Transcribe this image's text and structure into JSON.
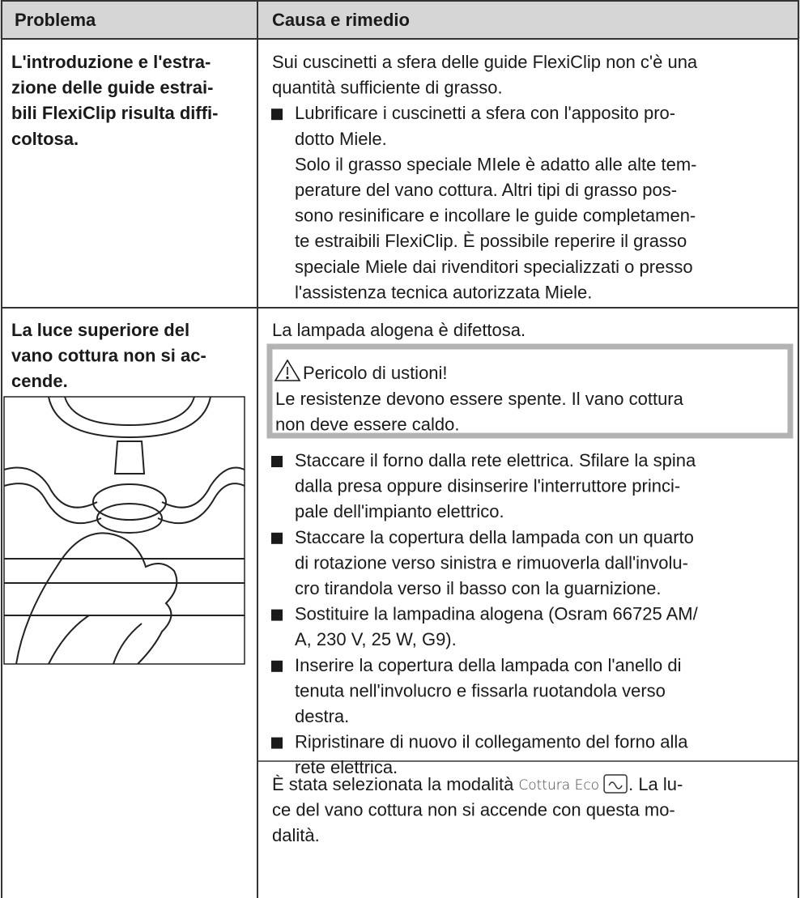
{
  "header": {
    "problem": "Problema",
    "cause": "Causa e rimedio"
  },
  "rows": [
    {
      "problem": [
        "L'introduzione e l'estra-",
        "zione delle guide estrai-",
        "bili FlexiClip risulta diffi-",
        "coltosa."
      ],
      "cause": [
        "Sui cuscinetti a sfera delle guide FlexiClip non c'è una",
        "quantità sufficiente di grasso."
      ],
      "bullets": [
        [
          "Lubrificare i cuscinetti a sfera con l'apposito pro-",
          "dotto Miele.",
          "Solo il grasso speciale MIele è adatto alle alte tem-",
          "perature del vano cottura. Altri tipi di grasso pos-",
          "sono resinificare e incollare le guide completamen-",
          "te estraibili FlexiClip. È possibile reperire il grasso",
          "speciale Miele dai rivenditori specializzati o presso",
          "l'assistenza tecnica autorizzata Miele."
        ]
      ]
    },
    {
      "problem": [
        "La luce superiore del",
        "vano cottura non si ac-",
        "cende."
      ],
      "cause": [
        "La lampada alogena è difettosa."
      ],
      "warning": {
        "title": "Pericolo di ustioni!",
        "text": [
          "Le resistenze devono essere spente. Il vano cottura",
          "non deve essere caldo."
        ]
      },
      "bullets": [
        [
          "Staccare il forno dalla rete elettrica. Sfilare la spina",
          "dalla presa oppure disinserire l'interruttore princi-",
          "pale dell'impianto elettrico."
        ],
        [
          "Staccare la copertura della lampada con un quarto",
          "di rotazione verso sinistra e rimuoverla dall'involu-",
          "cro tirandola verso il basso con la guarnizione."
        ],
        [
          "Sostituire la lampadina alogena (Osram 66725 AM/",
          "A, 230 V, 25 W, G9)."
        ],
        [
          "Inserire la copertura della lampada con l'anello di",
          "tenuta nell'involucro e fissarla ruotandola verso",
          "destra."
        ],
        [
          "Ripristinare di nuovo il collegamento del forno alla",
          "rete elettrica."
        ]
      ]
    },
    {
      "cause_start": "È stata selezionata la modalità",
      "mode": "Cottura Eco",
      "cause_end": ". La lu-",
      "cause": [
        "ce del vano cottura non si accende con questa mo-",
        "dalità."
      ]
    }
  ]
}
